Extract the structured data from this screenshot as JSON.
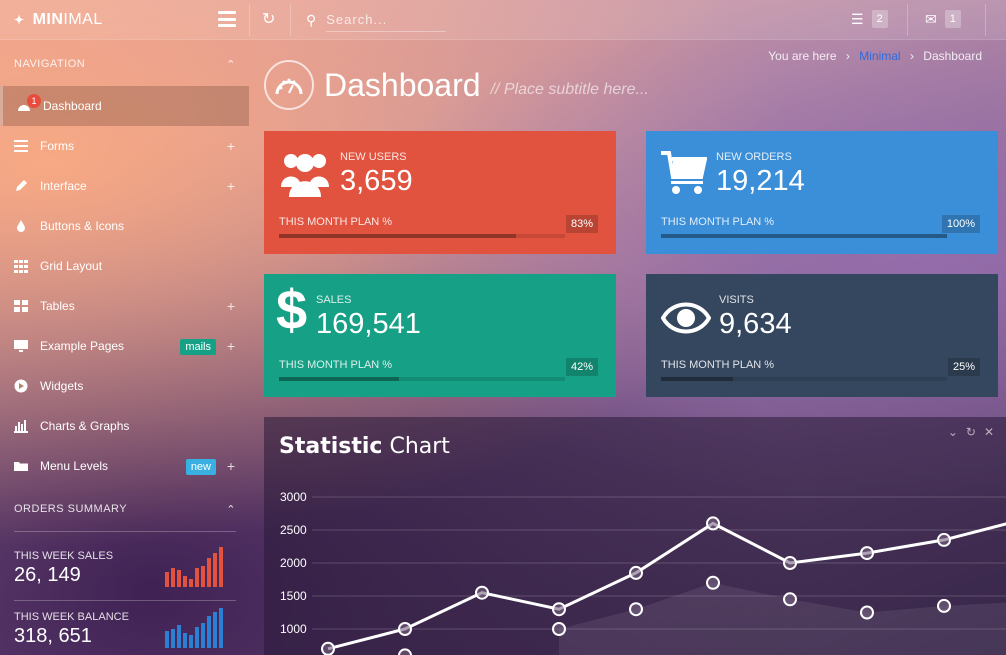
{
  "brand": {
    "name_bold": "MIN",
    "name_thin": "IMAL"
  },
  "topbar": {
    "search_placeholder": "Search...",
    "tasks_count": "2",
    "messages_count": "1"
  },
  "sidebar": {
    "nav_heading": "NAVIGATION",
    "items": [
      {
        "label": "Dashboard",
        "icon": "dashboard-icon",
        "active": true,
        "notification": "1"
      },
      {
        "label": "Forms",
        "icon": "list-icon",
        "expandable": true
      },
      {
        "label": "Interface",
        "icon": "pencil-icon",
        "expandable": true
      },
      {
        "label": "Buttons & Icons",
        "icon": "tint-icon"
      },
      {
        "label": "Grid Layout",
        "icon": "grid-icon"
      },
      {
        "label": "Tables",
        "icon": "table-icon",
        "expandable": true
      },
      {
        "label": "Example Pages",
        "icon": "desktop-icon",
        "badge": "mails",
        "expandable": true
      },
      {
        "label": "Widgets",
        "icon": "play-circle-icon"
      },
      {
        "label": "Charts & Graphs",
        "icon": "bar-chart-icon"
      },
      {
        "label": "Menu Levels",
        "icon": "folder-icon",
        "badge": "new",
        "expandable": true
      }
    ],
    "orders_heading": "ORDERS SUMMARY",
    "summary": [
      {
        "label": "THIS WEEK SALES",
        "value": "26, 149",
        "bars": [
          0.35,
          0.45,
          0.4,
          0.25,
          0.2,
          0.45,
          0.5,
          0.7,
          0.8,
          0.95
        ],
        "color": "#e2533f"
      },
      {
        "label": "THIS WEEK BALANCE",
        "value": "318, 651",
        "bars": [
          0.4,
          0.45,
          0.55,
          0.35,
          0.3,
          0.5,
          0.6,
          0.75,
          0.85,
          0.95
        ],
        "color": "#2d7fd3"
      }
    ]
  },
  "breadcrumb": {
    "prefix": "You are here",
    "link": "Minimal",
    "current": "Dashboard"
  },
  "page": {
    "title": "Dashboard",
    "subtitle": "// Place subtitle here..."
  },
  "cards": [
    {
      "label": "NEW USERS",
      "value": "3,659",
      "plan_label": "THIS MONTH PLAN %",
      "percent": "83%",
      "progress": 0.83,
      "color": "#e2533f",
      "icon": "users-icon"
    },
    {
      "label": "NEW ORDERS",
      "value": "19,214",
      "plan_label": "THIS MONTH PLAN %",
      "percent": "100%",
      "progress": 1.0,
      "color": "#3b8fd8",
      "icon": "cart-icon"
    },
    {
      "label": "SALES",
      "value": "169,541",
      "plan_label": "THIS MONTH PLAN %",
      "percent": "42%",
      "progress": 0.42,
      "color": "#16a085",
      "icon": "dollar-icon"
    },
    {
      "label": "VISITS",
      "value": "9,634",
      "plan_label": "THIS MONTH PLAN %",
      "percent": "25%",
      "progress": 0.25,
      "color": "#35475f",
      "icon": "eye-icon"
    }
  ],
  "chart": {
    "title_bold": "Statistic",
    "title_rest": " Chart"
  },
  "chart_data": {
    "type": "line",
    "title": "Statistic Chart",
    "y_ticks": [
      "3000",
      "2500",
      "2000",
      "1500",
      "1000"
    ],
    "ylim": [
      0,
      3000
    ],
    "grid": true,
    "series": [
      {
        "values": [
          700,
          1000,
          1550,
          1300,
          1850,
          2600,
          2000,
          2150,
          2350,
          2650
        ]
      },
      {
        "values": [
          null,
          600,
          null,
          1000,
          1300,
          1700,
          1450,
          1250,
          1350,
          null
        ]
      }
    ]
  }
}
